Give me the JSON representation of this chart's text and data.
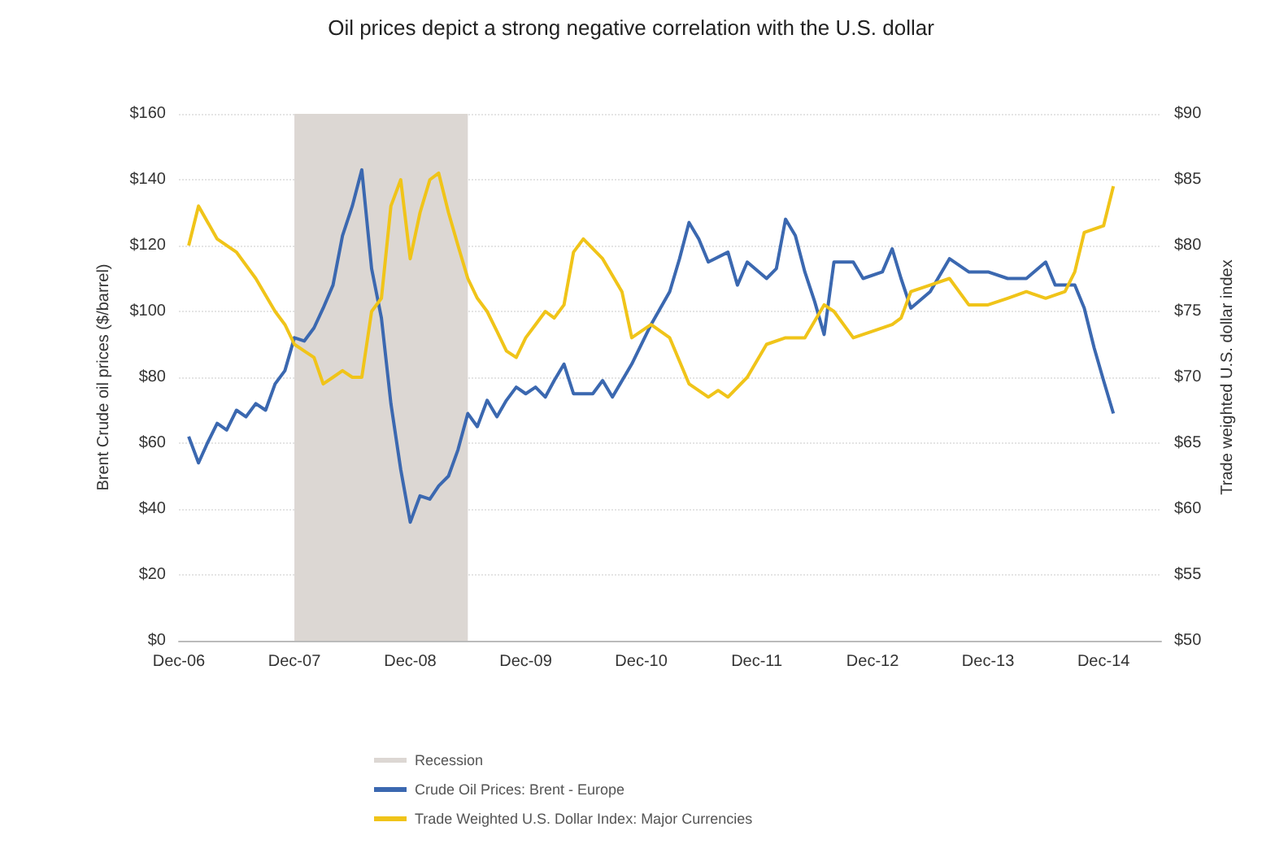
{
  "chart_data": {
    "type": "line",
    "title": "Oil prices depict a strong negative correlation with the U.S. dollar",
    "ylabel": "Brent Crude oil prices ($/barrel)",
    "y2label": "Trade weighted U.S. dollar index",
    "xlim": [
      "2006-12",
      "2015-06"
    ],
    "xticks": [
      {
        "value": "2006-12",
        "label": "Dec-06"
      },
      {
        "value": "2007-12",
        "label": "Dec-07"
      },
      {
        "value": "2008-12",
        "label": "Dec-08"
      },
      {
        "value": "2009-12",
        "label": "Dec-09"
      },
      {
        "value": "2010-12",
        "label": "Dec-10"
      },
      {
        "value": "2011-12",
        "label": "Dec-11"
      },
      {
        "value": "2012-12",
        "label": "Dec-12"
      },
      {
        "value": "2013-12",
        "label": "Dec-13"
      },
      {
        "value": "2014-12",
        "label": "Dec-14"
      }
    ],
    "ylim": [
      0,
      160
    ],
    "yticks": [
      {
        "value": 0,
        "label": "$0"
      },
      {
        "value": 20,
        "label": "$20"
      },
      {
        "value": 40,
        "label": "$40"
      },
      {
        "value": 60,
        "label": "$60"
      },
      {
        "value": 80,
        "label": "$80"
      },
      {
        "value": 100,
        "label": "$100"
      },
      {
        "value": 120,
        "label": "$120"
      },
      {
        "value": 140,
        "label": "$140"
      },
      {
        "value": 160,
        "label": "$160"
      }
    ],
    "y2lim": [
      50,
      90
    ],
    "y2ticks": [
      {
        "value": 50,
        "label": "$50"
      },
      {
        "value": 55,
        "label": "$55"
      },
      {
        "value": 60,
        "label": "$60"
      },
      {
        "value": 65,
        "label": "$65"
      },
      {
        "value": 70,
        "label": "$70"
      },
      {
        "value": 75,
        "label": "$75"
      },
      {
        "value": 80,
        "label": "$80"
      },
      {
        "value": 85,
        "label": "$85"
      },
      {
        "value": 90,
        "label": "$90"
      }
    ],
    "bands": [
      {
        "axis": "x",
        "from": "2007-12",
        "to": "2009-06",
        "label": "Recession",
        "color": "#dcd7d3"
      }
    ],
    "grid": "y",
    "legend": "bottom",
    "marker": "none",
    "line_style": "solid",
    "series": [
      {
        "name": "Crude Oil Prices: Brent - Europe",
        "color": "#3b68b0",
        "x": [
          "2007-01",
          "2007-02",
          "2007-03",
          "2007-04",
          "2007-05",
          "2007-06",
          "2007-07",
          "2007-08",
          "2007-09",
          "2007-10",
          "2007-11",
          "2007-12",
          "2008-01",
          "2008-02",
          "2008-03",
          "2008-04",
          "2008-05",
          "2008-06",
          "2008-07",
          "2008-08",
          "2008-09",
          "2008-10",
          "2008-11",
          "2008-12",
          "2009-01",
          "2009-02",
          "2009-03",
          "2009-04",
          "2009-05",
          "2009-06",
          "2009-07",
          "2009-08",
          "2009-09",
          "2009-10",
          "2009-11",
          "2009-12",
          "2010-01",
          "2010-02",
          "2010-03",
          "2010-04",
          "2010-05",
          "2010-06",
          "2010-07",
          "2010-08",
          "2010-09",
          "2010-11",
          "2011-01",
          "2011-03",
          "2011-04",
          "2011-05",
          "2011-06",
          "2011-07",
          "2011-09",
          "2011-10",
          "2011-11",
          "2012-01",
          "2012-02",
          "2012-03",
          "2012-04",
          "2012-05",
          "2012-06",
          "2012-07",
          "2012-08",
          "2012-10",
          "2012-11",
          "2013-01",
          "2013-02",
          "2013-03",
          "2013-04",
          "2013-06",
          "2013-08",
          "2013-10",
          "2013-12",
          "2014-02",
          "2014-04",
          "2014-06",
          "2014-07",
          "2014-09",
          "2014-10",
          "2014-11",
          "2014-12",
          "2015-01"
        ],
        "values": [
          62,
          54,
          60,
          66,
          64,
          70,
          68,
          72,
          70,
          78,
          82,
          92,
          91,
          95,
          101,
          108,
          123,
          132,
          143,
          113,
          98,
          72,
          52,
          36,
          44,
          43,
          47,
          50,
          58,
          69,
          65,
          73,
          68,
          73,
          77,
          75,
          77,
          74,
          79,
          84,
          75,
          75,
          75,
          79,
          74,
          84,
          96,
          106,
          116,
          127,
          122,
          115,
          118,
          108,
          115,
          110,
          113,
          128,
          123,
          112,
          103,
          93,
          115,
          115,
          110,
          112,
          119,
          110,
          101,
          106,
          116,
          112,
          112,
          110,
          110,
          115,
          108,
          108,
          101,
          89,
          79,
          69
        ]
      },
      {
        "name": "Trade Weighted U.S. Dollar Index: Major Currencies",
        "color": "#f0c419",
        "axis": "y2",
        "x": [
          "2007-01",
          "2007-02",
          "2007-04",
          "2007-06",
          "2007-08",
          "2007-10",
          "2007-11",
          "2007-12",
          "2008-01",
          "2008-02",
          "2008-03",
          "2008-04",
          "2008-05",
          "2008-06",
          "2008-07",
          "2008-08",
          "2008-09",
          "2008-10",
          "2008-11",
          "2008-12",
          "2009-01",
          "2009-02",
          "2009-03",
          "2009-04",
          "2009-05",
          "2009-06",
          "2009-07",
          "2009-08",
          "2009-09",
          "2009-10",
          "2009-11",
          "2009-12",
          "2010-01",
          "2010-02",
          "2010-03",
          "2010-04",
          "2010-05",
          "2010-06",
          "2010-08",
          "2010-10",
          "2010-11",
          "2011-01",
          "2011-03",
          "2011-05",
          "2011-07",
          "2011-08",
          "2011-09",
          "2011-11",
          "2012-01",
          "2012-03",
          "2012-05",
          "2012-07",
          "2012-08",
          "2012-10",
          "2012-12",
          "2013-02",
          "2013-03",
          "2013-04",
          "2013-06",
          "2013-08",
          "2013-10",
          "2013-12",
          "2014-02",
          "2014-04",
          "2014-06",
          "2014-08",
          "2014-09",
          "2014-10",
          "2014-12",
          "2015-01"
        ],
        "values": [
          80,
          83,
          80.5,
          79.5,
          77.5,
          75,
          74,
          72.5,
          72,
          71.5,
          69.5,
          70,
          70.5,
          70,
          70,
          75,
          76,
          83,
          85,
          79,
          82.5,
          85,
          85.5,
          82.5,
          80,
          77.5,
          76,
          75,
          73.5,
          72,
          71.5,
          73,
          74,
          75,
          74.5,
          75.5,
          79.5,
          80.5,
          79,
          76.5,
          73,
          74,
          73,
          69.5,
          68.5,
          69,
          68.5,
          70,
          72.5,
          73,
          73,
          75.5,
          75,
          73,
          73.5,
          74,
          74.5,
          76.5,
          77,
          77.5,
          75.5,
          75.5,
          76,
          76.5,
          76,
          76.5,
          78,
          81,
          81.5,
          84.5
        ]
      }
    ]
  }
}
